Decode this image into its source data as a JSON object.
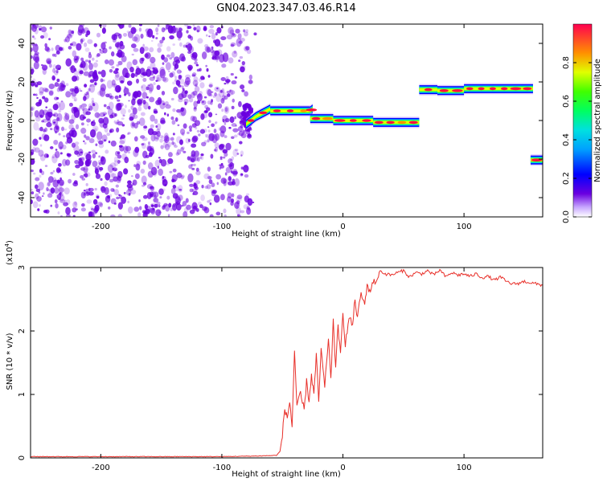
{
  "title": "GN04.2023.347.03.46.R14",
  "chart_data": [
    {
      "type": "heatmap",
      "xlabel": "Height of straight line (km)",
      "ylabel": "Frequency (Hz)",
      "xlim": [
        -258,
        165
      ],
      "ylim": [
        -50,
        50
      ],
      "xticks": [
        -200,
        -100,
        0,
        100
      ],
      "yticks": [
        -40,
        -20,
        0,
        20,
        40
      ],
      "colorbar": {
        "label": "Normalized spectral amplitude",
        "range": [
          0,
          1
        ],
        "ticks": [
          0.0,
          0.2,
          0.4,
          0.6,
          0.8
        ],
        "colormap": "rainbow"
      },
      "noise_region": {
        "x": [
          -258,
          -72
        ],
        "y": [
          -50,
          50
        ],
        "color": "#6a00e0"
      },
      "signal_tracks": [
        {
          "x": [
            -80,
            -72
          ],
          "freq": [
            -2,
            2
          ]
        },
        {
          "x": [
            -72,
            -60
          ],
          "freq": [
            2,
            6
          ]
        },
        {
          "x": [
            -60,
            -27
          ],
          "freq": [
            5,
            5
          ]
        },
        {
          "x": [
            -27,
            -25
          ],
          "freq": [
            5,
            6
          ]
        },
        {
          "x": [
            -27,
            -8
          ],
          "freq": [
            1,
            1
          ]
        },
        {
          "x": [
            -8,
            25
          ],
          "freq": [
            0,
            0
          ]
        },
        {
          "x": [
            25,
            63
          ],
          "freq": [
            -1,
            -1
          ]
        },
        {
          "x": [
            63,
            78
          ],
          "freq": [
            16,
            16
          ]
        },
        {
          "x": [
            78,
            100
          ],
          "freq": [
            15.5,
            15.5
          ]
        },
        {
          "x": [
            100,
            157
          ],
          "freq": [
            16.5,
            16.5
          ]
        },
        {
          "x": [
            155,
            165
          ],
          "freq": [
            -20.5,
            -20.5
          ]
        }
      ]
    },
    {
      "type": "line",
      "xlabel": "Height of straight line (km)",
      "ylabel": "SNR (10 * v/v)",
      "y_multiplier": "(x10^4)",
      "y_multiplier_base": "(x10",
      "y_multiplier_exp": "4",
      "y_multiplier_close": ")",
      "xlim": [
        -258,
        165
      ],
      "ylim": [
        0,
        3
      ],
      "xticks": [
        -200,
        -100,
        0,
        100
      ],
      "yticks": [
        0,
        1,
        2,
        3
      ],
      "color": "#e8302a",
      "series": [
        {
          "x": [
            -258,
            -220,
            -180,
            -140,
            -100,
            -70,
            -55,
            -52,
            -50,
            -48,
            -46,
            -44,
            -42,
            -40,
            -38,
            -35,
            -32,
            -30,
            -28,
            -26,
            -24,
            -22,
            -20,
            -18,
            -15,
            -12,
            -10,
            -8,
            -6,
            -4,
            -2,
            0,
            2,
            5,
            8,
            10,
            12,
            15,
            18,
            20,
            22,
            25,
            28,
            30,
            35,
            40,
            45,
            50,
            55,
            60,
            65,
            70,
            75,
            80,
            85,
            90,
            95,
            100,
            105,
            110,
            115,
            120,
            125,
            130,
            135,
            140,
            145,
            150,
            155,
            160,
            165
          ],
          "y": [
            0.02,
            0.02,
            0.02,
            0.02,
            0.02,
            0.03,
            0.04,
            0.1,
            0.35,
            0.8,
            0.6,
            0.9,
            0.5,
            1.7,
            0.8,
            1.0,
            0.75,
            1.2,
            0.9,
            1.3,
            1.0,
            1.6,
            0.9,
            1.7,
            1.1,
            1.9,
            1.2,
            2.2,
            1.4,
            2.1,
            1.6,
            2.3,
            1.8,
            2.2,
            2.1,
            2.5,
            2.2,
            2.6,
            2.4,
            2.75,
            2.6,
            2.8,
            2.75,
            2.95,
            2.9,
            2.88,
            2.92,
            2.95,
            2.85,
            2.92,
            2.9,
            2.95,
            2.88,
            2.96,
            2.85,
            2.92,
            2.88,
            2.9,
            2.86,
            2.9,
            2.84,
            2.86,
            2.8,
            2.85,
            2.78,
            2.74,
            2.75,
            2.78,
            2.76,
            2.74,
            2.72
          ]
        }
      ]
    }
  ]
}
